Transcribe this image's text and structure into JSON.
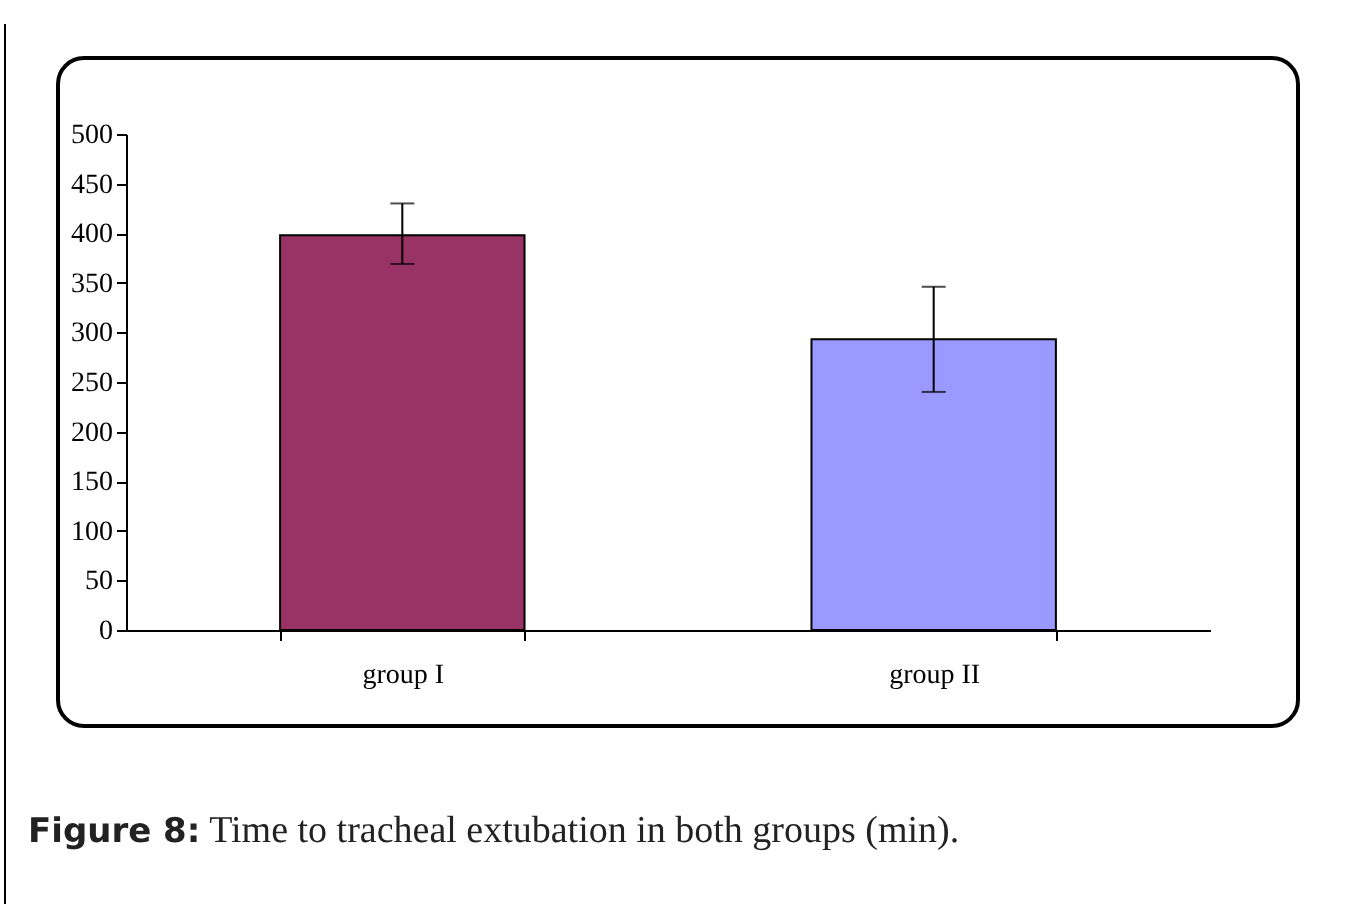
{
  "chart_data": {
    "type": "bar",
    "categories": [
      "group I",
      "group II"
    ],
    "values": [
      398,
      293
    ],
    "colors": [
      "#993366",
      "#9999ff"
    ],
    "errors": [
      [
        369,
        430
      ],
      [
        240,
        346
      ]
    ],
    "ylim": [
      0,
      500
    ],
    "yticks": [
      0,
      50,
      100,
      150,
      200,
      250,
      300,
      350,
      400,
      450,
      500
    ],
    "grid": false,
    "annotations": [
      "Figure 8: Time to tracheal extubation in both groups (min)."
    ]
  }
}
